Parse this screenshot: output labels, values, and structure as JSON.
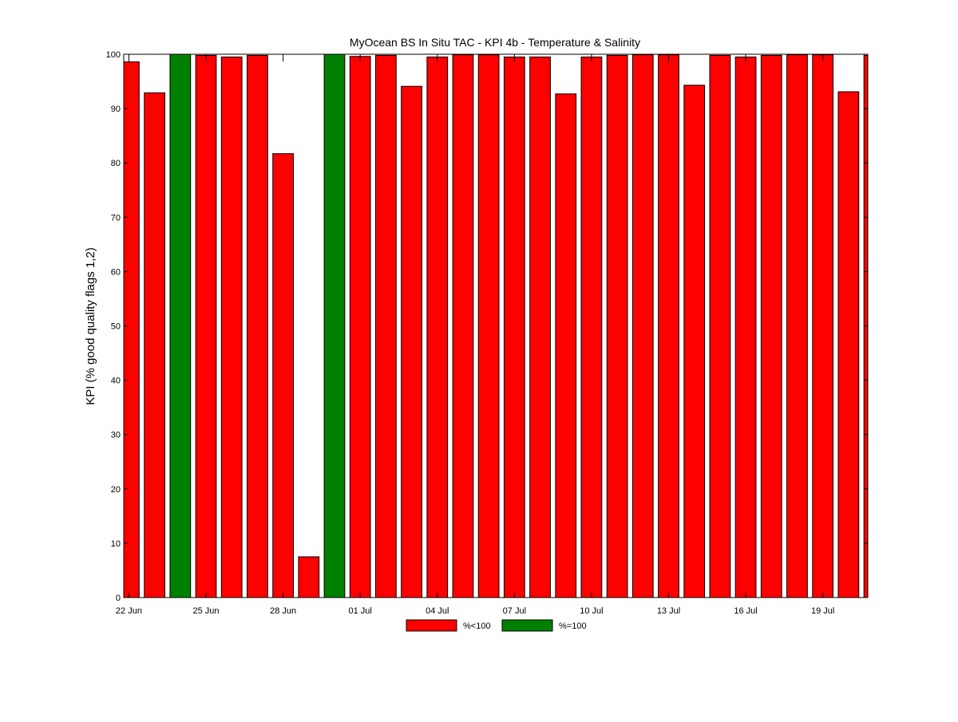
{
  "chart_data": {
    "type": "bar",
    "title": "MyOcean  BS In Situ TAC - KPI 4b - Temperature & Salinity",
    "xlabel": "",
    "ylabel": "KPI (% good quality flags 1,2)",
    "ylim": [
      0,
      100
    ],
    "xlim": [
      21.8,
      50.75
    ],
    "yticks": [
      0,
      10,
      20,
      30,
      40,
      50,
      60,
      70,
      80,
      90,
      100
    ],
    "xticks": [
      {
        "day": 22,
        "label": "22 Jun"
      },
      {
        "day": 25,
        "label": "25 Jun"
      },
      {
        "day": 28,
        "label": "28 Jun"
      },
      {
        "day": 31,
        "label": "01 Jul"
      },
      {
        "day": 34,
        "label": "04 Jul"
      },
      {
        "day": 37,
        "label": "07 Jul"
      },
      {
        "day": 40,
        "label": "10 Jul"
      },
      {
        "day": 43,
        "label": "13 Jul"
      },
      {
        "day": 46,
        "label": "16 Jul"
      },
      {
        "day": 49,
        "label": "19 Jul"
      }
    ],
    "categories": [
      "22 Jun",
      "23 Jun",
      "24 Jun",
      "25 Jun",
      "26 Jun",
      "27 Jun",
      "28 Jun",
      "29 Jun",
      "30 Jun",
      "01 Jul",
      "02 Jul",
      "03 Jul",
      "04 Jul",
      "05 Jul",
      "06 Jul",
      "07 Jul",
      "08 Jul",
      "09 Jul",
      "10 Jul",
      "11 Jul",
      "12 Jul",
      "13 Jul",
      "14 Jul",
      "15 Jul",
      "16 Jul",
      "17 Jul",
      "18 Jul",
      "19 Jul",
      "20 Jul",
      "21 Jul"
    ],
    "values": [
      98.6,
      92.9,
      100,
      99.8,
      99.5,
      99.8,
      81.7,
      7.5,
      100,
      99.6,
      99.8,
      94.1,
      99.5,
      99.9,
      99.9,
      99.5,
      99.5,
      92.7,
      99.5,
      99.8,
      99.9,
      99.9,
      94.3,
      99.8,
      99.5,
      99.8,
      99.9,
      99.9,
      93.1,
      99.8
    ],
    "colors": {
      "below": "#ff0000",
      "full": "#008000",
      "stroke": "#000000"
    },
    "legend": [
      {
        "label": "%<100",
        "color": "#ff0000"
      },
      {
        "label": "%=100",
        "color": "#008000"
      }
    ],
    "legend_position": "bottom-center",
    "grid": false
  }
}
